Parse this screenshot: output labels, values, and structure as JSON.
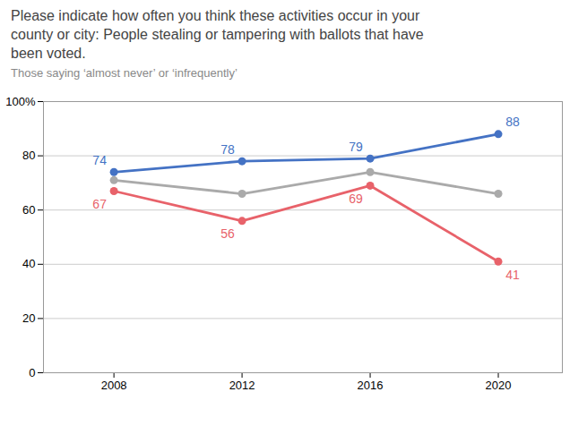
{
  "chart_data": {
    "type": "line",
    "title": "Please indicate how often you think these activities occur in your\ncounty or city: People stealing or tampering with ballots that have\nbeen voted.",
    "subtitle": "Those saying ‘almost never’ or ‘infrequently’",
    "x": [
      2008,
      2012,
      2016,
      2020
    ],
    "xlim": [
      2005.8,
      2022.0
    ],
    "xticks": [
      2008,
      2012,
      2016,
      2020
    ],
    "ylim": [
      0,
      100
    ],
    "yticks": [
      0,
      20,
      40,
      60,
      80,
      {
        "value": 100,
        "label": "100%"
      }
    ],
    "grid": true,
    "series": [
      {
        "color": "#AAAAAA",
        "values": [
          71,
          66,
          74,
          66
        ],
        "marker": "circle",
        "data_labels": false
      },
      {
        "color": "#4472C4",
        "values": [
          74,
          78,
          79,
          88
        ],
        "marker": "circle",
        "data_labels": true
      },
      {
        "color": "#E8626A",
        "values": [
          67,
          56,
          69,
          41
        ],
        "marker": "circle",
        "data_labels": true
      }
    ]
  }
}
